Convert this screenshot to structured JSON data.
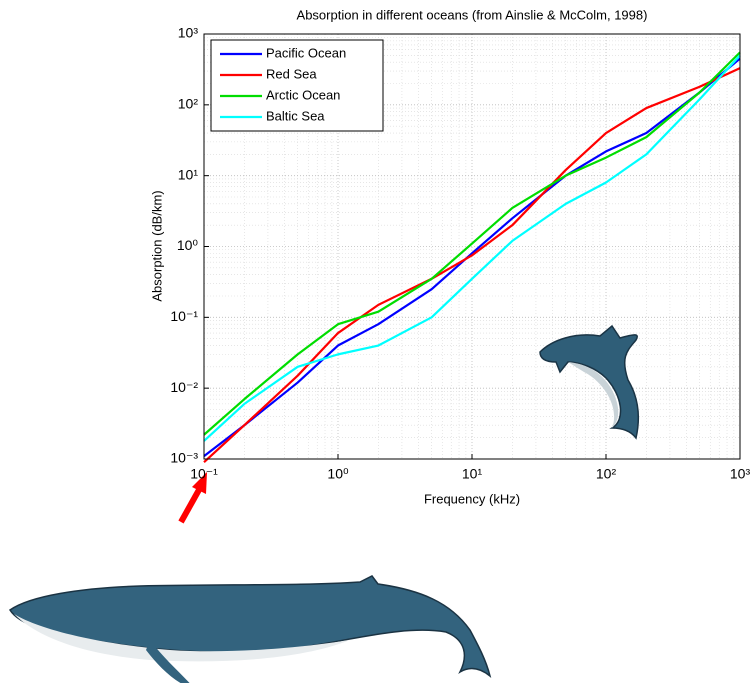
{
  "chart_data": {
    "type": "line",
    "title": "Absorption in different oceans (from Ainslie & McColm, 1998)",
    "x_label": "Frequency (kHz)",
    "y_label": "Absorption (dB/km)",
    "x": [
      0.1,
      0.2,
      0.5,
      1,
      2,
      5,
      10,
      20,
      50,
      100,
      200,
      500,
      1000
    ],
    "series": [
      {
        "name": "Pacific Ocean",
        "color": "#0000ff",
        "values": [
          0.0011,
          0.003,
          0.012,
          0.04,
          0.08,
          0.25,
          0.8,
          2.5,
          10,
          22,
          40,
          150,
          450
        ]
      },
      {
        "name": "Red Sea",
        "color": "#ff0000",
        "values": [
          0.0009,
          0.003,
          0.015,
          0.06,
          0.15,
          0.35,
          0.75,
          2,
          12,
          40,
          90,
          180,
          330
        ]
      },
      {
        "name": "Arctic Ocean",
        "color": "#00dd00",
        "values": [
          0.0022,
          0.007,
          0.03,
          0.08,
          0.12,
          0.35,
          1.1,
          3.5,
          10,
          18,
          35,
          150,
          550
        ]
      },
      {
        "name": "Baltic Sea",
        "color": "#00ffff",
        "values": [
          0.0018,
          0.006,
          0.02,
          0.03,
          0.04,
          0.1,
          0.35,
          1.2,
          4,
          8,
          20,
          120,
          500
        ]
      }
    ],
    "xlim": [
      0.1,
      1000
    ],
    "ylim": [
      0.001,
      1000
    ],
    "xticks": [
      {
        "value": 0.1,
        "label": "10⁻¹"
      },
      {
        "value": 1,
        "label": "10⁰"
      },
      {
        "value": 10,
        "label": "10¹"
      },
      {
        "value": 100,
        "label": "10²"
      },
      {
        "value": 1000,
        "label": "10³"
      }
    ],
    "yticks": [
      {
        "value": 0.001,
        "label": "10⁻³"
      },
      {
        "value": 0.01,
        "label": "10⁻²"
      },
      {
        "value": 0.1,
        "label": "10⁻¹"
      },
      {
        "value": 1,
        "label": "10⁰"
      },
      {
        "value": 10,
        "label": "10¹"
      },
      {
        "value": 100,
        "label": "10²"
      },
      {
        "value": 1000,
        "label": "10³"
      }
    ],
    "x_log": true,
    "y_log": true,
    "grid": true,
    "minor_grid": true,
    "legend": "upper left"
  }
}
